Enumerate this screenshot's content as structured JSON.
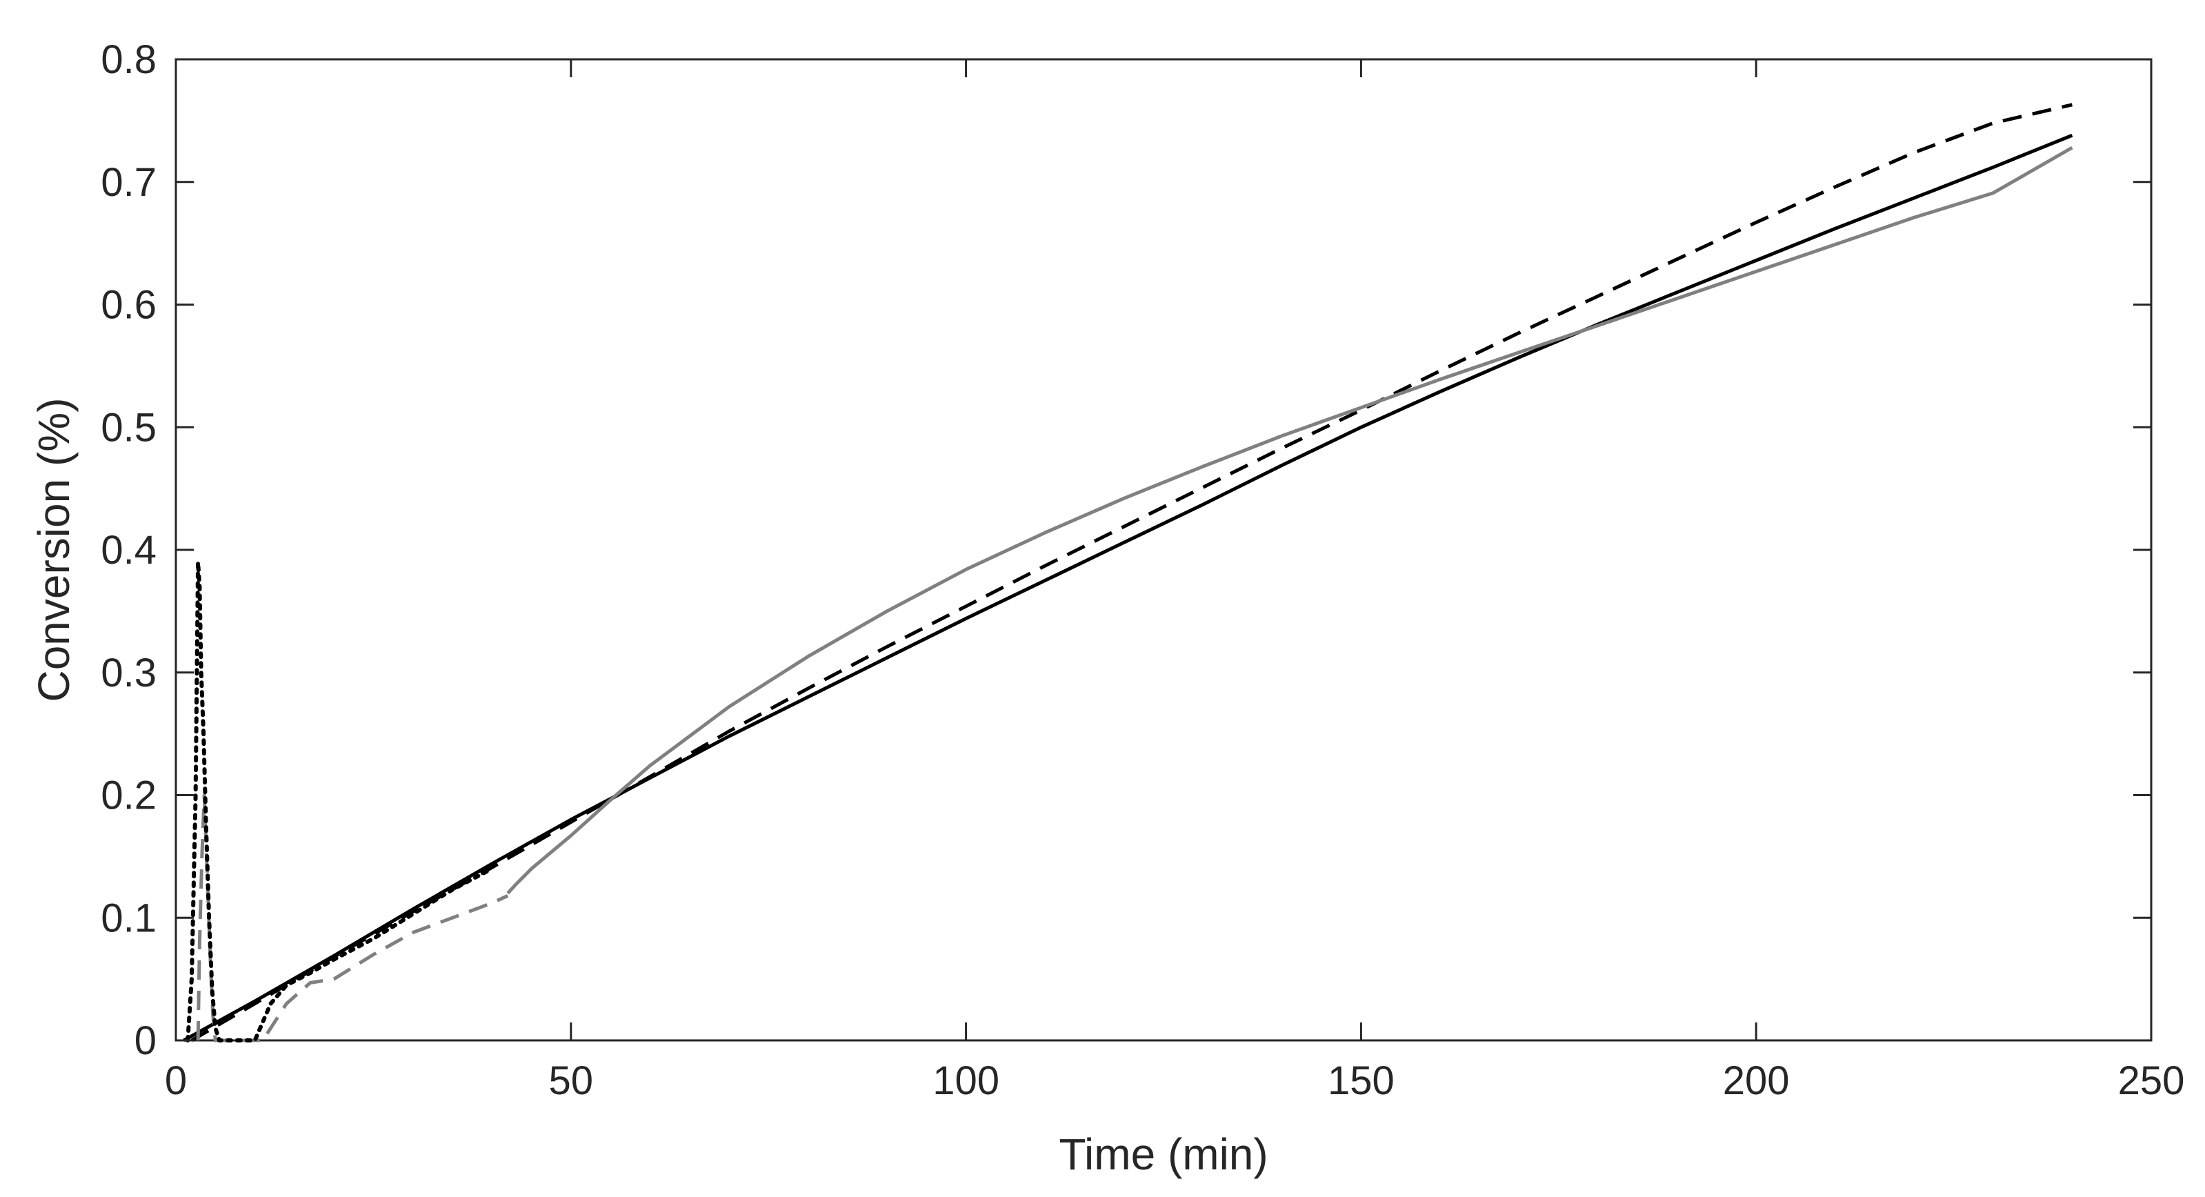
{
  "chart_data": {
    "type": "line",
    "title": "",
    "xlabel": "Time (min)",
    "ylabel": "Conversion (%)",
    "xlim": [
      0,
      250
    ],
    "ylim": [
      0,
      0.8
    ],
    "xticks": [
      0,
      50,
      100,
      150,
      200,
      250
    ],
    "yticks": [
      0,
      0.1,
      0.2,
      0.3,
      0.4,
      0.5,
      0.6,
      0.7,
      0.8
    ],
    "xtick_labels": [
      "0",
      "50",
      "100",
      "150",
      "200",
      "250"
    ],
    "ytick_labels": [
      "0",
      "0.1",
      "0.2",
      "0.3",
      "0.4",
      "0.5",
      "0.6",
      "0.7",
      "0.8"
    ],
    "grid": false,
    "legend": "none",
    "series": [
      {
        "style": "solid",
        "color": "#000000",
        "x": [
          1,
          10,
          20,
          30,
          40,
          50,
          60,
          70,
          80,
          90,
          100,
          110,
          120,
          130,
          140,
          150,
          160,
          170,
          180,
          190,
          200,
          210,
          220,
          230,
          240
        ],
        "y": [
          0.0,
          0.032,
          0.069,
          0.107,
          0.144,
          0.18,
          0.214,
          0.248,
          0.28,
          0.312,
          0.344,
          0.375,
          0.406,
          0.437,
          0.469,
          0.5,
          0.529,
          0.557,
          0.584,
          0.61,
          0.636,
          0.662,
          0.687,
          0.712,
          0.738
        ]
      },
      {
        "style": "dashed",
        "color": "#000000",
        "x": [
          2,
          10,
          20,
          30,
          40,
          50,
          60,
          70,
          80,
          90,
          100,
          110,
          120,
          130,
          140,
          150,
          160,
          170,
          180,
          190,
          200,
          210,
          220,
          230,
          240
        ],
        "y": [
          0.0,
          0.03,
          0.068,
          0.105,
          0.141,
          0.178,
          0.215,
          0.252,
          0.287,
          0.321,
          0.354,
          0.387,
          0.419,
          0.451,
          0.483,
          0.514,
          0.546,
          0.577,
          0.607,
          0.637,
          0.667,
          0.696,
          0.724,
          0.748,
          0.763
        ]
      },
      {
        "style": "solid",
        "color": "#808080",
        "x": [
          42,
          43,
          45,
          50,
          55,
          60,
          70,
          80,
          90,
          100,
          110,
          120,
          130,
          140,
          150,
          160,
          170,
          180,
          190,
          200,
          210,
          220,
          230,
          240
        ],
        "y": [
          0.12,
          0.127,
          0.14,
          0.167,
          0.196,
          0.224,
          0.272,
          0.313,
          0.35,
          0.384,
          0.414,
          0.442,
          0.468,
          0.493,
          0.516,
          0.539,
          0.561,
          0.583,
          0.605,
          0.627,
          0.649,
          0.671,
          0.691,
          0.728
        ]
      },
      {
        "style": "dashed",
        "color": "#808080",
        "x": [
          2.8,
          3.0,
          3.3,
          3.6,
          4.0,
          4.4,
          4.7,
          5.0,
          11,
          12,
          14,
          17,
          20,
          25,
          30,
          35,
          40,
          42
        ],
        "y": [
          0.0,
          0.08,
          0.15,
          0.2,
          0.13,
          0.06,
          0.02,
          0.0,
          0.0,
          0.01,
          0.03,
          0.047,
          0.05,
          0.07,
          0.088,
          0.1,
          0.112,
          0.118
        ]
      },
      {
        "style": "dotted",
        "color": "#000000",
        "x": [
          1.5,
          2.0,
          2.5,
          2.8,
          3.0,
          3.2,
          3.5,
          3.8,
          4.2,
          4.6,
          5.0,
          5.5,
          10,
          11,
          12,
          14,
          17,
          20,
          25,
          30,
          35,
          40
        ],
        "y": [
          0.0,
          0.05,
          0.2,
          0.39,
          0.37,
          0.3,
          0.25,
          0.18,
          0.1,
          0.04,
          0.01,
          0.0,
          0.0,
          0.015,
          0.03,
          0.045,
          0.055,
          0.066,
          0.083,
          0.103,
          0.123,
          0.14
        ]
      }
    ]
  }
}
